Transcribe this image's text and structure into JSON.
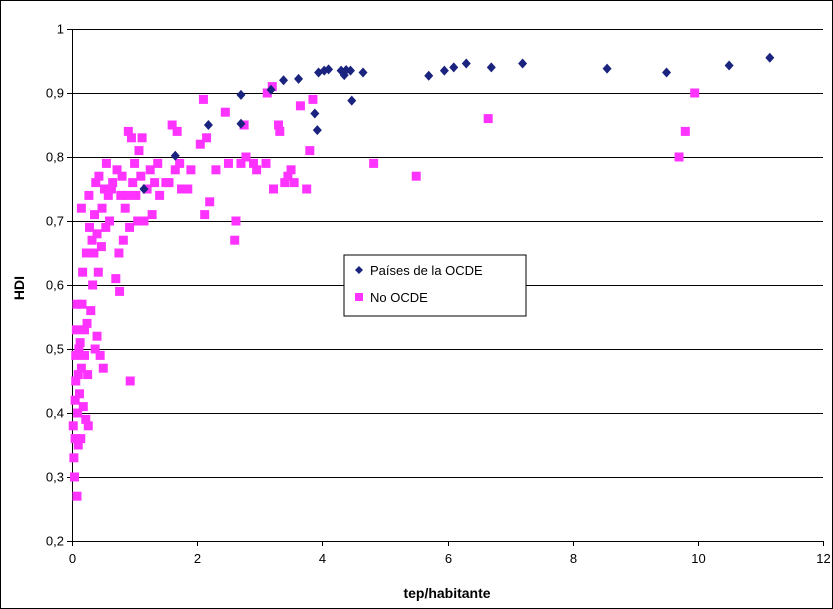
{
  "chart_data": {
    "type": "scatter",
    "title": "",
    "xlabel": "tep/habitante",
    "ylabel": "HDI",
    "xlim": [
      0,
      12
    ],
    "ylim": [
      0.2,
      1
    ],
    "xticks": [
      0,
      2,
      4,
      6,
      8,
      10,
      12
    ],
    "yticks": [
      0.2,
      0.3,
      0.4,
      0.5,
      0.6,
      0.7,
      0.8,
      0.9,
      1
    ],
    "xtick_labels": [
      "0",
      "2",
      "4",
      "6",
      "8",
      "10",
      "12"
    ],
    "ytick_labels": [
      "0,2",
      "0,3",
      "0,4",
      "0,5",
      "0,6",
      "0,7",
      "0,8",
      "0,9",
      "1"
    ],
    "grid": "horizontal",
    "legend_position": "center",
    "series": [
      {
        "name": "Países de la OCDE",
        "marker": "diamond",
        "color": "#1a237e",
        "points": [
          [
            1.15,
            0.75
          ],
          [
            1.65,
            0.802
          ],
          [
            2.18,
            0.85
          ],
          [
            2.7,
            0.852
          ],
          [
            2.7,
            0.897
          ],
          [
            3.18,
            0.905
          ],
          [
            3.38,
            0.92
          ],
          [
            3.62,
            0.922
          ],
          [
            3.88,
            0.868
          ],
          [
            3.92,
            0.842
          ],
          [
            3.94,
            0.932
          ],
          [
            4.03,
            0.935
          ],
          [
            4.1,
            0.937
          ],
          [
            4.3,
            0.935
          ],
          [
            4.35,
            0.928
          ],
          [
            4.38,
            0.936
          ],
          [
            4.45,
            0.935
          ],
          [
            4.47,
            0.888
          ],
          [
            4.65,
            0.932
          ],
          [
            5.7,
            0.927
          ],
          [
            5.95,
            0.935
          ],
          [
            6.1,
            0.94
          ],
          [
            6.3,
            0.946
          ],
          [
            6.7,
            0.94
          ],
          [
            7.2,
            0.946
          ],
          [
            8.55,
            0.938
          ],
          [
            9.5,
            0.932
          ],
          [
            10.5,
            0.943
          ],
          [
            11.15,
            0.955
          ]
        ]
      },
      {
        "name": "No OCDE",
        "marker": "square",
        "color": "#ff33ff",
        "points": [
          [
            0.02,
            0.38
          ],
          [
            0.03,
            0.33
          ],
          [
            0.04,
            0.3
          ],
          [
            0.05,
            0.36
          ],
          [
            0.05,
            0.42
          ],
          [
            0.06,
            0.45
          ],
          [
            0.06,
            0.49
          ],
          [
            0.07,
            0.53
          ],
          [
            0.08,
            0.27
          ],
          [
            0.08,
            0.57
          ],
          [
            0.09,
            0.4
          ],
          [
            0.1,
            0.35
          ],
          [
            0.1,
            0.46
          ],
          [
            0.11,
            0.5
          ],
          [
            0.12,
            0.43
          ],
          [
            0.13,
            0.51
          ],
          [
            0.14,
            0.36
          ],
          [
            0.15,
            0.47
          ],
          [
            0.15,
            0.72
          ],
          [
            0.16,
            0.57
          ],
          [
            0.17,
            0.62
          ],
          [
            0.18,
            0.41
          ],
          [
            0.2,
            0.53
          ],
          [
            0.2,
            0.49
          ],
          [
            0.22,
            0.39
          ],
          [
            0.23,
            0.65
          ],
          [
            0.24,
            0.54
          ],
          [
            0.25,
            0.46
          ],
          [
            0.26,
            0.38
          ],
          [
            0.27,
            0.74
          ],
          [
            0.28,
            0.69
          ],
          [
            0.3,
            0.56
          ],
          [
            0.32,
            0.67
          ],
          [
            0.33,
            0.6
          ],
          [
            0.35,
            0.65
          ],
          [
            0.36,
            0.71
          ],
          [
            0.37,
            0.5
          ],
          [
            0.38,
            0.76
          ],
          [
            0.4,
            0.52
          ],
          [
            0.4,
            0.68
          ],
          [
            0.42,
            0.62
          ],
          [
            0.43,
            0.77
          ],
          [
            0.45,
            0.49
          ],
          [
            0.47,
            0.66
          ],
          [
            0.48,
            0.72
          ],
          [
            0.5,
            0.47
          ],
          [
            0.52,
            0.75
          ],
          [
            0.54,
            0.69
          ],
          [
            0.55,
            0.79
          ],
          [
            0.58,
            0.74
          ],
          [
            0.6,
            0.7
          ],
          [
            0.63,
            0.75
          ],
          [
            0.65,
            0.76
          ],
          [
            0.7,
            0.61
          ],
          [
            0.72,
            0.78
          ],
          [
            0.75,
            0.65
          ],
          [
            0.76,
            0.59
          ],
          [
            0.78,
            0.74
          ],
          [
            0.8,
            0.77
          ],
          [
            0.82,
            0.67
          ],
          [
            0.85,
            0.72
          ],
          [
            0.88,
            0.74
          ],
          [
            0.9,
            0.84
          ],
          [
            0.92,
            0.69
          ],
          [
            0.93,
            0.45
          ],
          [
            0.95,
            0.83
          ],
          [
            0.97,
            0.76
          ],
          [
            1.0,
            0.79
          ],
          [
            1.02,
            0.74
          ],
          [
            1.05,
            0.7
          ],
          [
            1.07,
            0.81
          ],
          [
            1.1,
            0.77
          ],
          [
            1.12,
            0.83
          ],
          [
            1.15,
            0.7
          ],
          [
            1.2,
            0.75
          ],
          [
            1.25,
            0.78
          ],
          [
            1.28,
            0.71
          ],
          [
            1.32,
            0.76
          ],
          [
            1.37,
            0.79
          ],
          [
            1.4,
            0.74
          ],
          [
            1.5,
            0.76
          ],
          [
            1.55,
            0.76
          ],
          [
            1.6,
            0.85
          ],
          [
            1.65,
            0.78
          ],
          [
            1.68,
            0.84
          ],
          [
            1.72,
            0.79
          ],
          [
            1.75,
            0.75
          ],
          [
            1.85,
            0.75
          ],
          [
            1.9,
            0.78
          ],
          [
            2.05,
            0.82
          ],
          [
            2.1,
            0.89
          ],
          [
            2.12,
            0.71
          ],
          [
            2.15,
            0.83
          ],
          [
            2.2,
            0.73
          ],
          [
            2.3,
            0.78
          ],
          [
            2.45,
            0.87
          ],
          [
            2.5,
            0.79
          ],
          [
            2.6,
            0.67
          ],
          [
            2.62,
            0.7
          ],
          [
            2.7,
            0.79
          ],
          [
            2.75,
            0.85
          ],
          [
            2.78,
            0.8
          ],
          [
            2.9,
            0.79
          ],
          [
            2.95,
            0.78
          ],
          [
            3.1,
            0.79
          ],
          [
            3.12,
            0.9
          ],
          [
            3.2,
            0.91
          ],
          [
            3.22,
            0.75
          ],
          [
            3.3,
            0.85
          ],
          [
            3.32,
            0.84
          ],
          [
            3.4,
            0.76
          ],
          [
            3.45,
            0.77
          ],
          [
            3.5,
            0.78
          ],
          [
            3.55,
            0.76
          ],
          [
            3.65,
            0.88
          ],
          [
            3.75,
            0.75
          ],
          [
            3.8,
            0.81
          ],
          [
            3.85,
            0.89
          ],
          [
            4.82,
            0.79
          ],
          [
            5.5,
            0.77
          ],
          [
            6.65,
            0.86
          ],
          [
            9.7,
            0.8
          ],
          [
            9.8,
            0.84
          ],
          [
            9.95,
            0.9
          ]
        ]
      }
    ]
  }
}
